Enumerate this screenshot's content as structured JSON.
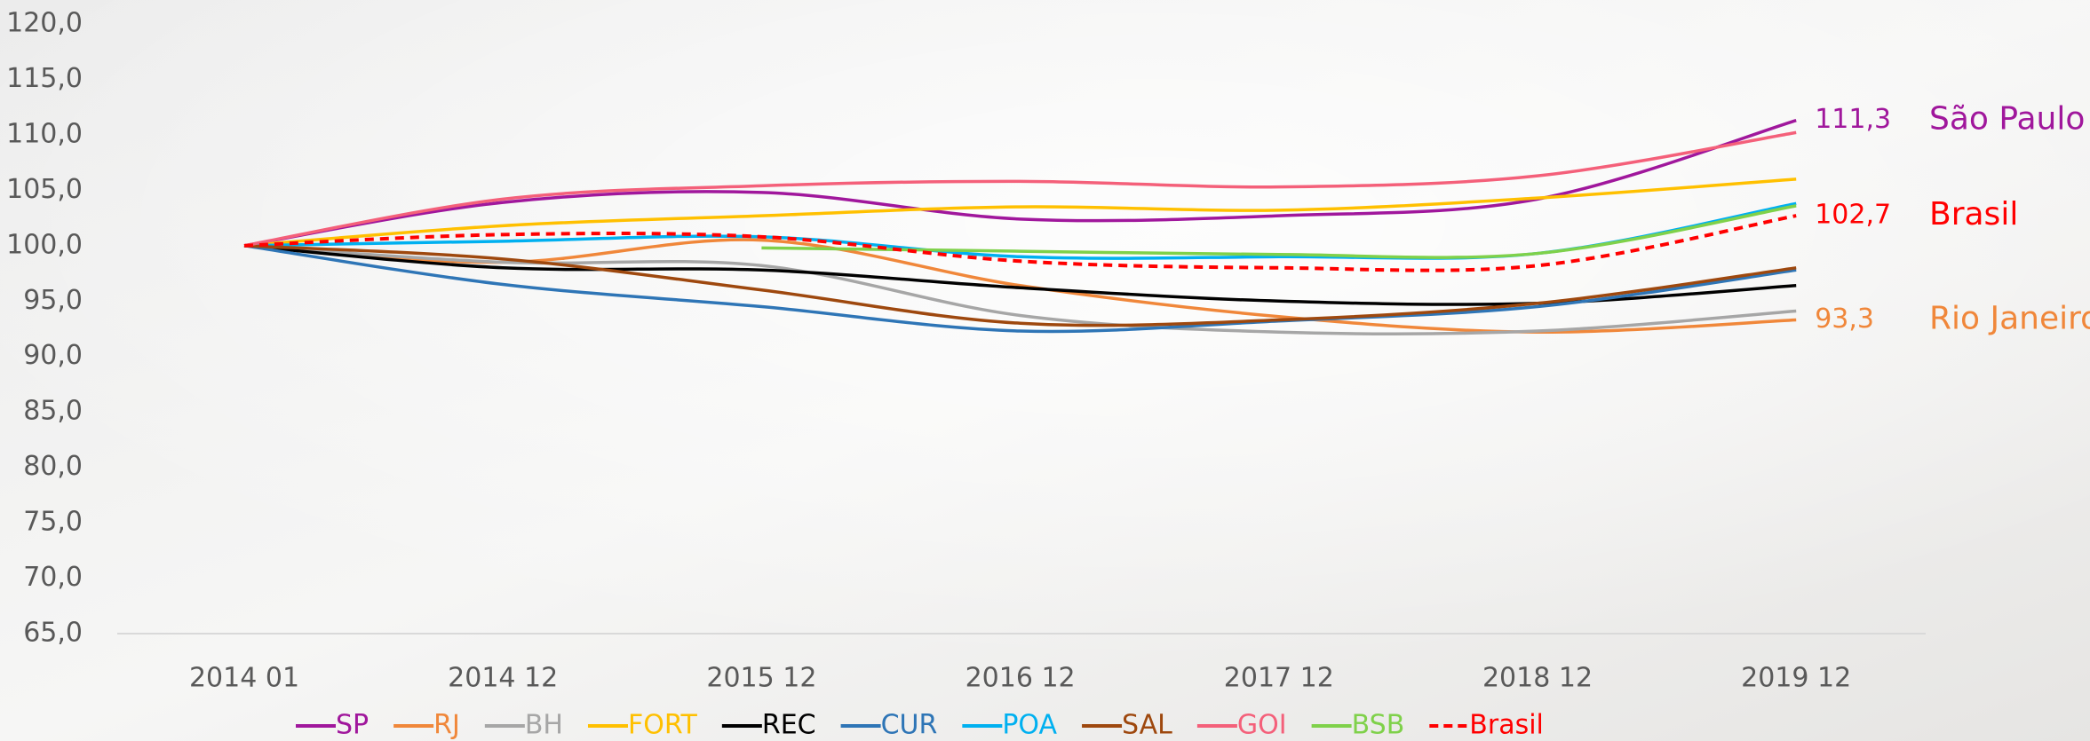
{
  "chart_data": {
    "type": "line",
    "categories": [
      "2014 01",
      "2014 12",
      "2015 12",
      "2016 12",
      "2017 12",
      "2018 12",
      "2019 12"
    ],
    "ylim": [
      65,
      120
    ],
    "yticks": [
      {
        "value": 65,
        "label": "65,0"
      },
      {
        "value": 70,
        "label": "70,0"
      },
      {
        "value": 75,
        "label": "75,0"
      },
      {
        "value": 80,
        "label": "80,0"
      },
      {
        "value": 85,
        "label": "85,0"
      },
      {
        "value": 90,
        "label": "90,0"
      },
      {
        "value": 95,
        "label": "95,0"
      },
      {
        "value": 100,
        "label": "100,0"
      },
      {
        "value": 105,
        "label": "105,0"
      },
      {
        "value": 110,
        "label": "110,0"
      },
      {
        "value": 115,
        "label": "115,0"
      },
      {
        "value": 120,
        "label": "120,0"
      }
    ],
    "series": [
      {
        "name": "SP",
        "color": "#a0179c",
        "values": [
          100,
          103.9,
          104.8,
          102.4,
          102.7,
          104.2,
          111.3
        ],
        "value_labels": [
          null,
          null,
          null,
          null,
          null,
          null,
          "111,3"
        ],
        "annotation": "São Paulo"
      },
      {
        "name": "RJ",
        "color": "#f0873a",
        "values": [
          100,
          98.5,
          100.5,
          96.4,
          93.6,
          92.2,
          93.3
        ],
        "value_labels": [
          null,
          null,
          null,
          null,
          null,
          null,
          "93,3"
        ],
        "annotation": "Rio Janeiro"
      },
      {
        "name": "BH",
        "color": "#a6a6a6",
        "values": [
          100,
          98.5,
          98.2,
          93.7,
          92.2,
          92.3,
          94.1
        ]
      },
      {
        "name": "FORT",
        "color": "#ffc000",
        "values": [
          100,
          101.8,
          102.7,
          103.5,
          103.2,
          104.3,
          106
        ]
      },
      {
        "name": "REC",
        "color": "#000000",
        "values": [
          100,
          98,
          97.8,
          96.2,
          95,
          94.8,
          96.4
        ]
      },
      {
        "name": "CUR",
        "color": "#2e75b6",
        "values": [
          100,
          96.5,
          94.5,
          92.3,
          93.2,
          94.5,
          97.8
        ]
      },
      {
        "name": "POA",
        "color": "#00b0f0",
        "values": [
          100,
          100.4,
          100.8,
          99,
          99,
          99.3,
          103.8
        ]
      },
      {
        "name": "SAL",
        "color": "#9e480e",
        "values": [
          100,
          98.8,
          96,
          93,
          93.3,
          94.8,
          98
        ]
      },
      {
        "name": "GOI",
        "color": "#f4607a",
        "values": [
          100,
          104.2,
          105.4,
          105.8,
          105.3,
          106.3,
          110.2
        ]
      },
      {
        "name": "BSB",
        "color": "#7fd14a",
        "values": [
          null,
          null,
          99.8,
          99.5,
          99.2,
          99.3,
          103.6
        ]
      },
      {
        "name": "Brasil",
        "color": "#ff0000",
        "dashed": true,
        "values": [
          100,
          101,
          100.8,
          98.6,
          98,
          98.2,
          102.7
        ],
        "value_labels": [
          null,
          null,
          null,
          null,
          null,
          null,
          "102,7"
        ],
        "annotation": "Brasil"
      }
    ]
  }
}
